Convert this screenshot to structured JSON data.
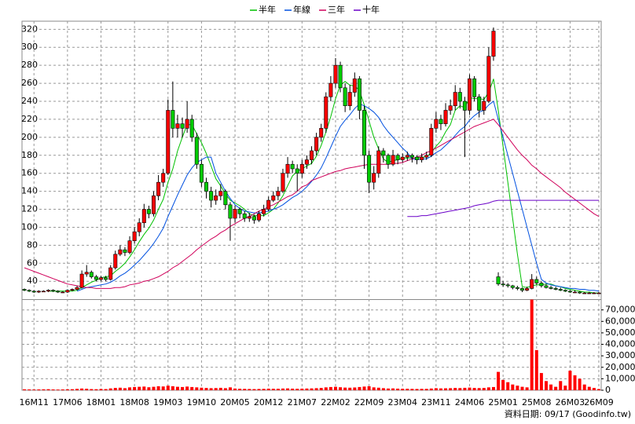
{
  "chart_data": {
    "type": "candlestick",
    "legend": [
      {
        "name": "半年",
        "color": "#00c000"
      },
      {
        "name": "年線",
        "color": "#0050e0"
      },
      {
        "name": "三年",
        "color": "#d0005a"
      },
      {
        "name": "十年",
        "color": "#6a00c8"
      }
    ],
    "footer": "資料日期: 09/17 (Goodinfo.tw)",
    "up_color": "#ff0000",
    "down_color": "#00cc00",
    "volume_color": "#ff0000",
    "categories": [
      null,
      null,
      "16M11",
      null,
      null,
      null,
      null,
      null,
      null,
      "17M06",
      null,
      null,
      null,
      null,
      null,
      null,
      "18M01",
      null,
      null,
      null,
      null,
      null,
      null,
      "18M08",
      null,
      null,
      null,
      null,
      null,
      null,
      "19M03",
      null,
      null,
      null,
      null,
      null,
      null,
      "19M10",
      null,
      null,
      null,
      null,
      null,
      null,
      "20M05",
      null,
      null,
      null,
      null,
      null,
      null,
      "20M12",
      null,
      null,
      null,
      null,
      null,
      null,
      "21M07",
      null,
      null,
      null,
      null,
      null,
      null,
      "22M02",
      null,
      null,
      null,
      null,
      null,
      null,
      "22M09",
      null,
      null,
      null,
      null,
      null,
      null,
      "23M04",
      null,
      null,
      null,
      null,
      null,
      null,
      "23M11",
      null,
      null,
      null,
      null,
      null,
      null,
      "24M06",
      null,
      null,
      null,
      null,
      null,
      null,
      "25M01",
      null,
      null,
      null,
      null,
      null,
      null,
      "25M08",
      null,
      null,
      null,
      null,
      null,
      null,
      "26M03",
      null,
      null,
      null,
      null,
      null,
      "26M09"
    ],
    "ohlc": [
      [
        31,
        32,
        29,
        30
      ],
      [
        30,
        31,
        28,
        29
      ],
      [
        29,
        30,
        27,
        28
      ],
      [
        28,
        30,
        27,
        29
      ],
      [
        29,
        30,
        28,
        29
      ],
      [
        29,
        31,
        28,
        30
      ],
      [
        30,
        31,
        28,
        29
      ],
      [
        29,
        30,
        27,
        28
      ],
      [
        28,
        29,
        27,
        28
      ],
      [
        28,
        31,
        27,
        30
      ],
      [
        30,
        32,
        29,
        31
      ],
      [
        31,
        35,
        30,
        33
      ],
      [
        33,
        52,
        32,
        48
      ],
      [
        48,
        58,
        45,
        50
      ],
      [
        50,
        52,
        43,
        45
      ],
      [
        45,
        47,
        40,
        42
      ],
      [
        42,
        46,
        40,
        44
      ],
      [
        44,
        46,
        40,
        42
      ],
      [
        42,
        58,
        41,
        55
      ],
      [
        55,
        74,
        53,
        70
      ],
      [
        70,
        80,
        68,
        75
      ],
      [
        75,
        78,
        68,
        72
      ],
      [
        72,
        90,
        70,
        85
      ],
      [
        85,
        100,
        82,
        95
      ],
      [
        95,
        110,
        90,
        105
      ],
      [
        105,
        126,
        100,
        120
      ],
      [
        120,
        124,
        110,
        115
      ],
      [
        115,
        140,
        112,
        135
      ],
      [
        135,
        158,
        130,
        150
      ],
      [
        150,
        165,
        145,
        160
      ],
      [
        160,
        242,
        158,
        230
      ],
      [
        230,
        262,
        200,
        210
      ],
      [
        210,
        225,
        200,
        215
      ],
      [
        215,
        222,
        200,
        210
      ],
      [
        210,
        240,
        205,
        220
      ],
      [
        220,
        225,
        195,
        200
      ],
      [
        200,
        205,
        165,
        170
      ],
      [
        170,
        175,
        145,
        150
      ],
      [
        150,
        155,
        132,
        140
      ],
      [
        140,
        145,
        122,
        130
      ],
      [
        130,
        142,
        125,
        135
      ],
      [
        135,
        148,
        130,
        140
      ],
      [
        140,
        142,
        120,
        125
      ],
      [
        125,
        128,
        85,
        110
      ],
      [
        110,
        124,
        105,
        120
      ],
      [
        120,
        122,
        110,
        115
      ],
      [
        115,
        118,
        106,
        110
      ],
      [
        110,
        116,
        106,
        112
      ],
      [
        112,
        114,
        104,
        108
      ],
      [
        108,
        118,
        106,
        115
      ],
      [
        115,
        125,
        112,
        120
      ],
      [
        120,
        134,
        118,
        130
      ],
      [
        130,
        140,
        128,
        135
      ],
      [
        135,
        145,
        130,
        140
      ],
      [
        140,
        165,
        138,
        160
      ],
      [
        160,
        178,
        155,
        170
      ],
      [
        170,
        174,
        160,
        165
      ],
      [
        165,
        170,
        140,
        160
      ],
      [
        160,
        175,
        155,
        170
      ],
      [
        170,
        180,
        165,
        175
      ],
      [
        175,
        190,
        170,
        185
      ],
      [
        185,
        205,
        180,
        200
      ],
      [
        200,
        215,
        195,
        210
      ],
      [
        210,
        250,
        205,
        245
      ],
      [
        245,
        268,
        240,
        260
      ],
      [
        260,
        288,
        255,
        280
      ],
      [
        280,
        284,
        250,
        255
      ],
      [
        255,
        260,
        228,
        235
      ],
      [
        235,
        258,
        230,
        250
      ],
      [
        250,
        272,
        245,
        265
      ],
      [
        265,
        268,
        220,
        230
      ],
      [
        230,
        235,
        165,
        180
      ],
      [
        180,
        185,
        138,
        150
      ],
      [
        150,
        168,
        142,
        160
      ],
      [
        160,
        190,
        155,
        185
      ],
      [
        185,
        188,
        172,
        180
      ],
      [
        180,
        182,
        165,
        170
      ],
      [
        170,
        186,
        168,
        180
      ],
      [
        180,
        182,
        170,
        175
      ],
      [
        175,
        182,
        172,
        178
      ],
      [
        178,
        184,
        174,
        180
      ],
      [
        180,
        182,
        172,
        178
      ],
      [
        178,
        180,
        170,
        175
      ],
      [
        175,
        182,
        172,
        178
      ],
      [
        178,
        184,
        175,
        180
      ],
      [
        180,
        215,
        178,
        210
      ],
      [
        210,
        228,
        205,
        220
      ],
      [
        220,
        225,
        208,
        215
      ],
      [
        215,
        238,
        212,
        230
      ],
      [
        230,
        242,
        225,
        235
      ],
      [
        235,
        258,
        230,
        250
      ],
      [
        250,
        255,
        232,
        240
      ],
      [
        240,
        245,
        178,
        230
      ],
      [
        230,
        270,
        225,
        265
      ],
      [
        265,
        268,
        240,
        245
      ],
      [
        245,
        248,
        222,
        230
      ],
      [
        230,
        245,
        225,
        240
      ],
      [
        240,
        300,
        238,
        290
      ],
      [
        290,
        322,
        285,
        318
      ],
      [
        45,
        50,
        35,
        37
      ],
      [
        37,
        40,
        34,
        36
      ],
      [
        36,
        38,
        33,
        35
      ],
      [
        35,
        36,
        31,
        33
      ],
      [
        33,
        35,
        30,
        32
      ],
      [
        32,
        33,
        28,
        30
      ],
      [
        30,
        34,
        29,
        32
      ],
      [
        32,
        48,
        31,
        42
      ],
      [
        42,
        45,
        36,
        38
      ],
      [
        38,
        40,
        33,
        35
      ],
      [
        35,
        37,
        32,
        33
      ],
      [
        33,
        35,
        31,
        32
      ],
      [
        32,
        34,
        30,
        31
      ],
      [
        31,
        33,
        29,
        30
      ],
      [
        30,
        31,
        28,
        29
      ],
      [
        29,
        30,
        27,
        28
      ],
      [
        28,
        30,
        27,
        28
      ],
      [
        28,
        29,
        26,
        27
      ],
      [
        27,
        28,
        26,
        27
      ],
      [
        27,
        28,
        26,
        27
      ],
      [
        27,
        28,
        26,
        27
      ],
      [
        27,
        28,
        26,
        27
      ]
    ],
    "ma": [
      {
        "values": [
          null,
          null,
          null,
          null,
          null,
          29,
          29,
          29,
          29,
          29,
          29,
          30,
          33,
          36,
          39,
          41,
          44,
          45,
          46,
          51,
          55,
          60,
          67,
          75,
          84,
          92,
          99,
          108,
          120,
          131,
          150,
          165,
          185,
          200,
          214,
          214,
          204,
          194,
          182,
          168,
          154,
          146,
          137,
          130,
          127,
          124,
          120,
          115,
          113,
          113,
          113,
          116,
          120,
          127,
          135,
          146,
          157,
          162,
          165,
          168,
          171,
          179,
          191,
          206,
          223,
          243,
          258,
          262,
          258,
          257,
          252,
          236,
          218,
          200,
          187,
          176,
          172,
          174,
          175,
          177,
          177,
          177,
          177,
          178,
          178,
          183,
          190,
          196,
          206,
          214,
          230,
          235,
          233,
          244,
          243,
          243,
          242,
          250,
          265,
          230,
          190,
          150,
          110,
          70,
          34,
          33,
          35,
          36,
          36,
          37,
          37,
          35,
          34,
          32,
          31,
          30,
          29,
          28,
          28,
          27,
          27
        ]
      },
      {
        "values": [
          null,
          null,
          null,
          null,
          null,
          null,
          null,
          null,
          null,
          null,
          null,
          29,
          31,
          33,
          34,
          35,
          36,
          37,
          39,
          42,
          46,
          49,
          53,
          58,
          63,
          69,
          75,
          82,
          90,
          99,
          112,
          124,
          136,
          147,
          158,
          166,
          172,
          175,
          178,
          178,
          160,
          150,
          140,
          132,
          125,
          121,
          118,
          117,
          116,
          116,
          117,
          118,
          120,
          122,
          125,
          129,
          133,
          136,
          140,
          145,
          151,
          158,
          166,
          177,
          189,
          201,
          212,
          219,
          225,
          232,
          237,
          235,
          232,
          228,
          222,
          213,
          206,
          200,
          194,
          188,
          183,
          176,
          175,
          176,
          176,
          179,
          183,
          186,
          191,
          196,
          202,
          208,
          212,
          219,
          224,
          228,
          230,
          236,
          240,
          220,
          200,
          180,
          160,
          140,
          120,
          100,
          80,
          60,
          42,
          38,
          36,
          35,
          34,
          33,
          32,
          32,
          31,
          31,
          30,
          30,
          29
        ]
      },
      {
        "values": [
          55,
          53,
          51,
          49,
          47,
          45,
          43,
          41,
          39,
          37,
          36,
          35,
          34,
          33,
          33,
          32,
          32,
          32,
          32,
          33,
          33,
          34,
          36,
          37,
          38,
          40,
          41,
          43,
          45,
          48,
          51,
          55,
          58,
          62,
          66,
          70,
          75,
          79,
          83,
          87,
          90,
          94,
          97,
          101,
          104,
          107,
          110,
          112,
          115,
          118,
          120,
          123,
          125,
          128,
          131,
          134,
          136,
          140,
          145,
          147,
          152,
          154,
          156,
          158,
          160,
          162,
          163,
          165,
          166,
          167,
          168,
          169,
          170,
          170,
          170,
          170,
          170,
          171,
          171,
          172,
          174,
          176,
          178,
          180,
          183,
          185,
          188,
          191,
          194,
          197,
          200,
          203,
          206,
          209,
          212,
          214,
          216,
          218,
          220,
          214,
          207,
          200,
          193,
          186,
          180,
          175,
          169,
          165,
          160,
          156,
          152,
          148,
          144,
          139,
          135,
          131,
          127,
          123,
          119,
          115,
          112
        ]
      },
      {
        "values": [
          null,
          null,
          null,
          null,
          null,
          null,
          null,
          null,
          null,
          null,
          null,
          null,
          null,
          null,
          null,
          null,
          null,
          null,
          null,
          null,
          null,
          null,
          null,
          null,
          null,
          null,
          null,
          null,
          null,
          null,
          null,
          null,
          null,
          null,
          null,
          null,
          null,
          null,
          null,
          null,
          null,
          null,
          null,
          null,
          null,
          null,
          null,
          null,
          null,
          null,
          null,
          null,
          null,
          null,
          null,
          null,
          null,
          null,
          null,
          null,
          null,
          null,
          null,
          null,
          null,
          null,
          null,
          null,
          null,
          null,
          null,
          null,
          null,
          null,
          null,
          null,
          null,
          null,
          null,
          null,
          112,
          112,
          112,
          113,
          113,
          114,
          115,
          116,
          117,
          118,
          119,
          120,
          121,
          122,
          124,
          125,
          126,
          127,
          129,
          130,
          130,
          130,
          130,
          130,
          130,
          130,
          130,
          130,
          130,
          130,
          130,
          130,
          130,
          130,
          130,
          130,
          130,
          130,
          130,
          130,
          130
        ]
      }
    ],
    "volume": [
      800,
      700,
      600,
      700,
      800,
      900,
      700,
      600,
      700,
      800,
      900,
      1200,
      1500,
      1300,
      1000,
      900,
      1100,
      1000,
      1600,
      2000,
      2200,
      1800,
      2500,
      2800,
      3000,
      3200,
      2600,
      3000,
      3500,
      3300,
      4000,
      3500,
      3000,
      2800,
      3200,
      2800,
      2500,
      2200,
      2000,
      1800,
      1900,
      2100,
      1800,
      2500,
      1500,
      1300,
      1200,
      1100,
      1000,
      1100,
      1200,
      1400,
      1300,
      1300,
      1500,
      1600,
      1400,
      1300,
      1400,
      1500,
      1600,
      1800,
      2000,
      2500,
      2800,
      3000,
      2600,
      2300,
      2200,
      2400,
      2800,
      3200,
      3500,
      2500,
      2200,
      1800,
      1500,
      1600,
      1400,
      1300,
      1300,
      1200,
      1100,
      1200,
      1200,
      1500,
      1800,
      1600,
      1700,
      1800,
      2000,
      1900,
      2100,
      2300,
      2000,
      1900,
      2000,
      2500,
      2800,
      16000,
      9000,
      7000,
      5000,
      4000,
      3000,
      2500,
      79000,
      35000,
      15000,
      8000,
      5000,
      3000,
      8000,
      4000,
      17000,
      13000,
      10000,
      5000,
      3000,
      2000,
      1000
    ],
    "ylim": [
      21,
      329
    ],
    "yticks": [
      40,
      60,
      80,
      100,
      120,
      140,
      160,
      180,
      200,
      220,
      240,
      260,
      280,
      300,
      320
    ],
    "y2lim": [
      0,
      78000
    ],
    "y2ticks": [
      0,
      {
        "value": 10000,
        "label": "10,000"
      },
      {
        "value": 20000,
        "label": "20,000"
      },
      {
        "value": 30000,
        "label": "30,000"
      },
      {
        "value": 40000,
        "label": "40,000"
      },
      {
        "value": 50000,
        "label": "50,000"
      },
      {
        "value": 60000,
        "label": "60,000"
      },
      {
        "value": 70000,
        "label": "70,000"
      }
    ],
    "grid": true
  }
}
